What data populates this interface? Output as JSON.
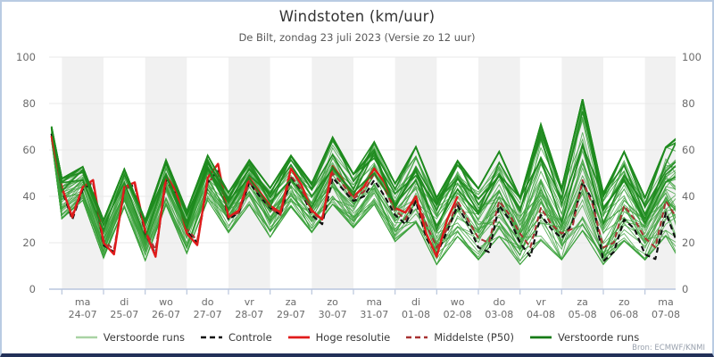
{
  "header": {
    "title": "Windstoten (km/uur)",
    "subtitle": "De Bilt, zondag 23 juli 2023 (Versie zo 12 uur)"
  },
  "source_note": "Bron: ECMWF/KNMI",
  "legend": {
    "items": [
      {
        "label": "Verstoorde runs",
        "color": "#a9d3a4",
        "style": "solid",
        "width": 2.4
      },
      {
        "label": "Controle",
        "color": "#111111",
        "style": "dashed",
        "width": 2.4
      },
      {
        "label": "Hoge resolutie",
        "color": "#e01b1b",
        "style": "solid",
        "width": 2.8
      },
      {
        "label": "Middelste (P50)",
        "color": "#a83232",
        "style": "dashed",
        "width": 2.4
      },
      {
        "label": "Verstoorde runs",
        "color": "#157a15",
        "style": "solid",
        "width": 2.8
      }
    ]
  },
  "axis": {
    "label_color": "#6b6b6b",
    "axis_color": "#b9c6dd",
    "grid_color": "#e9e9e9",
    "band_color": "#f1f1f1"
  },
  "chart_data": {
    "type": "line",
    "title": "Windstoten (km/uur)",
    "subtitle": "De Bilt, zondag 23 juli 2023 (Versie zo 12 uur)",
    "ylim": [
      0,
      100
    ],
    "yticks": [
      0,
      20,
      40,
      60,
      80,
      100
    ],
    "grid": "horizontal",
    "legend_position": "bottom",
    "x_days": [
      {
        "dow": "ma",
        "date": "24-07"
      },
      {
        "dow": "di",
        "date": "25-07"
      },
      {
        "dow": "wo",
        "date": "26-07"
      },
      {
        "dow": "do",
        "date": "27-07"
      },
      {
        "dow": "vr",
        "date": "28-07"
      },
      {
        "dow": "za",
        "date": "29-07"
      },
      {
        "dow": "zo",
        "date": "30-07"
      },
      {
        "dow": "ma",
        "date": "31-07"
      },
      {
        "dow": "di",
        "date": "01-08"
      },
      {
        "dow": "wo",
        "date": "02-08"
      },
      {
        "dow": "do",
        "date": "03-08"
      },
      {
        "dow": "vr",
        "date": "04-08"
      },
      {
        "dow": "za",
        "date": "05-08"
      },
      {
        "dow": "zo",
        "date": "06-08"
      },
      {
        "dow": "ma",
        "date": "07-08"
      }
    ],
    "series": [
      {
        "name": "Controle",
        "color": "#111111",
        "dash": "6 4",
        "width": 2.2,
        "t0": -0.25,
        "dt": 0.25,
        "values": [
          67,
          43,
          30,
          43,
          46,
          19,
          16,
          43,
          45,
          24,
          15,
          47,
          41,
          25,
          20,
          46,
          51,
          30,
          33,
          46,
          40,
          35,
          32,
          48,
          42,
          32,
          28,
          48,
          43,
          38,
          40,
          47,
          40,
          32,
          28,
          38,
          22,
          15,
          25,
          36,
          28,
          18,
          16,
          36,
          30,
          20,
          14,
          32,
          26,
          22,
          28,
          46,
          38,
          12,
          16,
          30,
          26,
          15,
          13,
          33,
          21
        ]
      },
      {
        "name": "Middelste (P50)",
        "color": "#a83232",
        "dash": "6 4",
        "width": 2.0,
        "t0": -0.25,
        "dt": 0.25,
        "values": [
          66,
          43,
          32,
          44,
          46,
          21,
          17,
          43,
          45,
          25,
          17,
          46,
          41,
          26,
          21,
          46,
          50,
          31,
          33,
          46,
          41,
          35,
          32,
          49,
          43,
          33,
          30,
          50,
          45,
          39,
          42,
          50,
          43,
          34,
          30,
          40,
          28,
          18,
          26,
          38,
          30,
          22,
          20,
          38,
          32,
          24,
          18,
          35,
          28,
          24,
          26,
          47,
          36,
          18,
          20,
          36,
          30,
          22,
          18,
          38,
          31
        ]
      },
      {
        "name": "Hoge resolutie",
        "color": "#e01b1b",
        "dash": "",
        "width": 2.4,
        "t0": -0.25,
        "dt": 0.25,
        "values": [
          66,
          44,
          31,
          44,
          47,
          20,
          15,
          44,
          46,
          25,
          14,
          49,
          42,
          24,
          19,
          48,
          54,
          31,
          34,
          48,
          42,
          36,
          33,
          52,
          45,
          34,
          30,
          53,
          47,
          40,
          44,
          52,
          46,
          35,
          33,
          40,
          24,
          14,
          30,
          40
        ]
      }
    ],
    "ensemble": {
      "name": "Verstoorde runs",
      "count": 50,
      "thick_count": 8,
      "thin_color": "#3aa03a",
      "thick_color": "#1d8a1d",
      "t": [
        -0.25,
        0,
        0.5,
        1,
        1.5,
        2,
        2.5,
        3,
        3.5,
        4,
        4.5,
        5,
        5.5,
        6,
        6.5,
        7,
        7.5,
        8,
        8.5,
        9,
        9.5,
        10,
        10.5,
        11,
        11.5,
        12,
        12.5,
        13,
        13.5,
        14,
        14.5,
        14.75
      ],
      "envelope_min": [
        63,
        30,
        38,
        13,
        35,
        12,
        36,
        15,
        38,
        24,
        36,
        22,
        35,
        24,
        36,
        26,
        36,
        20,
        28,
        10,
        22,
        12,
        22,
        10,
        20,
        12,
        24,
        10,
        20,
        12,
        22,
        14
      ],
      "envelope_max": [
        71,
        48,
        53,
        30,
        52,
        30,
        56,
        34,
        58,
        42,
        56,
        44,
        58,
        46,
        66,
        50,
        64,
        46,
        62,
        40,
        56,
        44,
        60,
        40,
        72,
        44,
        83,
        42,
        60,
        40,
        62,
        66
      ]
    }
  }
}
